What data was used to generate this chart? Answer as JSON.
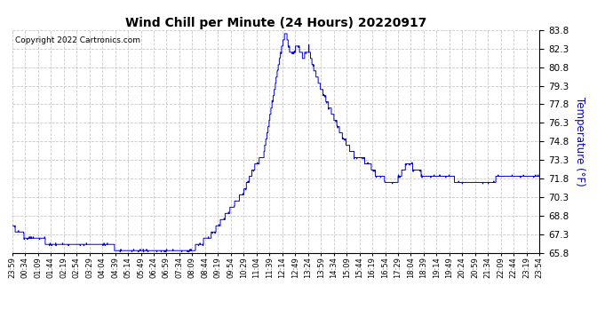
{
  "title": "Wind Chill per Minute (24 Hours) 20220917",
  "ylabel": "Temperature (°F)",
  "copyright_text": "Copyright 2022 Cartronics.com",
  "line_color": "#0000cc",
  "background_color": "#ffffff",
  "grid_color": "#c8c8c8",
  "ylabel_color": "#0000cc",
  "ylim": [
    65.8,
    83.8
  ],
  "yticks": [
    65.8,
    67.3,
    68.8,
    70.3,
    71.8,
    73.3,
    74.8,
    76.3,
    77.8,
    79.3,
    80.8,
    82.3,
    83.8
  ],
  "xtick_labels": [
    "23:59",
    "00:34",
    "01:09",
    "01:44",
    "02:19",
    "02:54",
    "03:29",
    "04:04",
    "04:39",
    "05:14",
    "05:49",
    "06:24",
    "06:59",
    "07:34",
    "08:09",
    "08:44",
    "09:19",
    "09:54",
    "10:29",
    "11:04",
    "11:39",
    "12:14",
    "12:49",
    "13:24",
    "13:59",
    "14:34",
    "15:09",
    "15:44",
    "16:19",
    "16:54",
    "17:29",
    "18:04",
    "18:39",
    "19:14",
    "19:49",
    "20:24",
    "20:59",
    "21:34",
    "22:09",
    "22:44",
    "23:19",
    "23:54"
  ]
}
